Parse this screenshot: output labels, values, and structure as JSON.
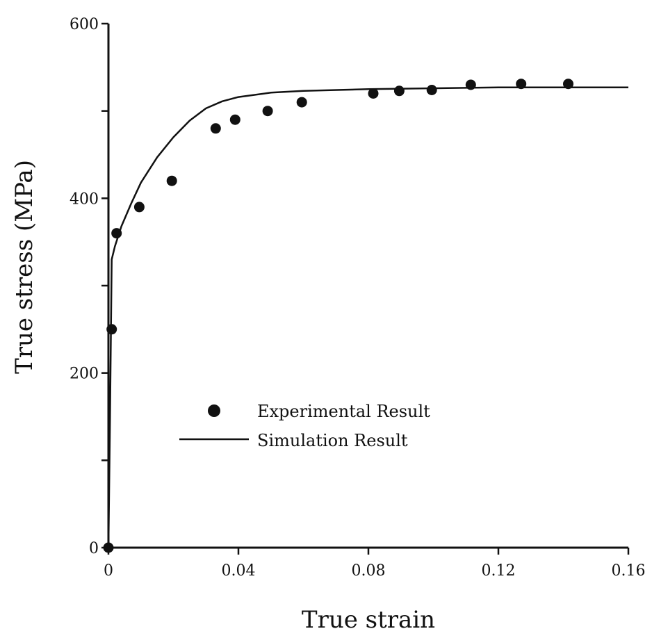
{
  "chart_data": {
    "type": "scatter",
    "title": "",
    "xlabel": "True strain",
    "ylabel": "True stress (MPa)",
    "xlim": [
      0,
      0.16
    ],
    "ylim": [
      0,
      600
    ],
    "x_ticks": [
      0,
      0.04,
      0.08,
      0.12,
      0.16
    ],
    "x_tick_labels": [
      "0",
      "0.04",
      "0.08",
      "0.12",
      "0.16"
    ],
    "y_ticks": [
      0,
      100,
      200,
      300,
      400,
      500,
      600
    ],
    "y_tick_labels": [
      "0",
      "",
      "200",
      "",
      "400",
      "",
      "600"
    ],
    "grid": false,
    "legend_position": "center-left",
    "series": [
      {
        "name": "Experimental Result",
        "kind": "scatter",
        "color": "#111111",
        "x": [
          0.0,
          0.001,
          0.0025,
          0.0095,
          0.0195,
          0.033,
          0.039,
          0.049,
          0.0595,
          0.0815,
          0.0895,
          0.0995,
          0.1115,
          0.127,
          0.1415
        ],
        "y": [
          0,
          250,
          360,
          390,
          420,
          480,
          490,
          500,
          510,
          520,
          523,
          524,
          530,
          531,
          531
        ]
      },
      {
        "name": "Simulation Result",
        "kind": "line",
        "color": "#111111",
        "x": [
          0.0,
          0.0005,
          0.001,
          0.002,
          0.004,
          0.007,
          0.01,
          0.015,
          0.02,
          0.025,
          0.03,
          0.035,
          0.04,
          0.05,
          0.06,
          0.08,
          0.1,
          0.12,
          0.14,
          0.16
        ],
        "y": [
          0,
          150,
          330,
          345,
          368,
          394,
          418,
          447,
          470,
          489,
          503,
          511,
          516,
          521,
          523,
          525,
          526,
          527,
          527,
          527
        ]
      }
    ]
  }
}
